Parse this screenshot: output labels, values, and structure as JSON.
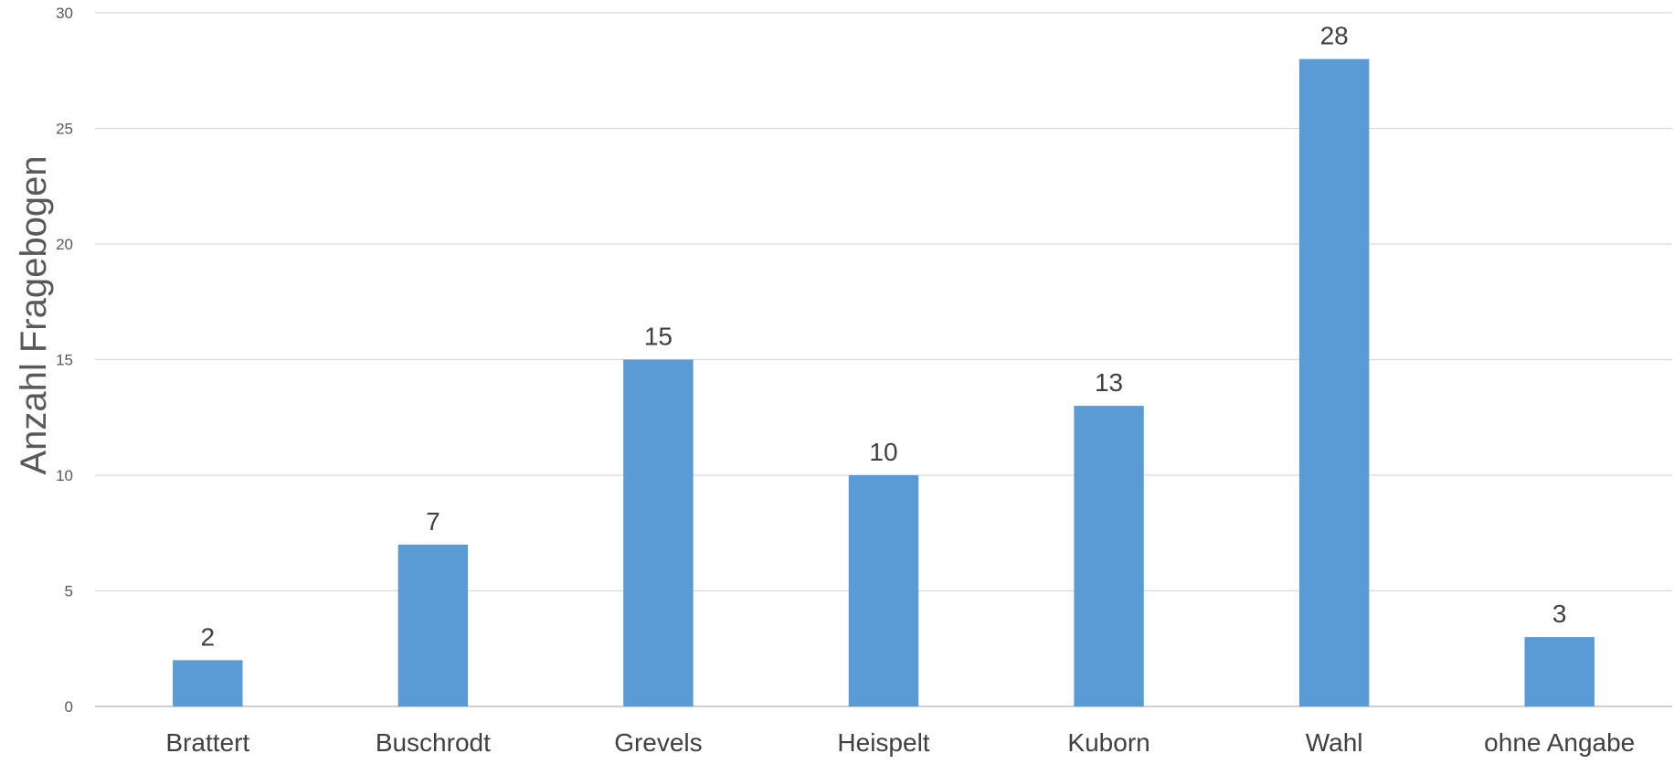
{
  "chart_data": {
    "type": "bar",
    "title": "",
    "xlabel": "",
    "ylabel": "Anzahl Fragebogen",
    "ylim": [
      0,
      30
    ],
    "ytick_step": 5,
    "grid": true,
    "legend": "none",
    "bar_color": "#5b9bd5",
    "categories": [
      "Brattert",
      "Buschrodt",
      "Grevels",
      "Heispelt",
      "Kuborn",
      "Wahl",
      "ohne Angabe"
    ],
    "values": [
      2,
      7,
      15,
      10,
      13,
      28,
      3
    ]
  }
}
